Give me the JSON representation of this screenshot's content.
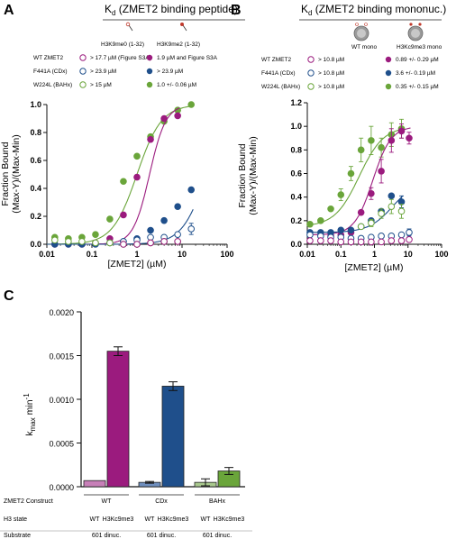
{
  "panel_a": {
    "letter": "A",
    "title_k": "K",
    "title_sub": "d",
    "title_rest": " (ZMET2 binding peptide)",
    "col_headers": [
      "H3K9me0 (1-32)",
      "H3K9me2 (1-32)"
    ],
    "legend_rows": [
      {
        "label": "WT ZMET2",
        "open": "> 17.7 µM (Figure S3A)",
        "filled": "1.9 µM and Figure S3A"
      },
      {
        "label": "F441A (CDx)",
        "open": "> 23.9 µM",
        "filled": "> 23.9 µM"
      },
      {
        "label": "W224L (BAHx)",
        "open": "> 15 µM",
        "filled": "1.0 +/- 0.06 µM"
      }
    ]
  },
  "panel_b": {
    "letter": "B",
    "title_k": "K",
    "title_sub": "d",
    "title_rest": " (ZMET2 binding mononuc.)",
    "col_headers": [
      "WT mono",
      "H3Kc9me3 mono"
    ],
    "legend_rows": [
      {
        "label": "WT ZMET2",
        "open": "> 10.8 µM",
        "filled": "0.89 +/- 0.29 µM"
      },
      {
        "label": "F441A (CDx)",
        "open": "> 10.8 µM",
        "filled": "3.6 +/- 0.19 µM"
      },
      {
        "label": "W224L (BAHx)",
        "open": "> 10.8 µM",
        "filled": "0.35 +/- 0.15 µM"
      }
    ]
  },
  "panel_c": {
    "letter": "C",
    "row_labels": [
      "ZMET2 Construct",
      "H3 state",
      "Substrate"
    ],
    "constructs": [
      "WT",
      "CDx",
      "BAHx"
    ],
    "h3_states": [
      "WT",
      "H3Kc9me3",
      "WT",
      "H3Kc9me3",
      "WT",
      "H3Kc9me3"
    ],
    "substrates": [
      "601 dinuc.",
      "601 dinuc.",
      "601 dinuc."
    ]
  },
  "colors": {
    "wt": "#9b1b7e",
    "cdx": "#1f4f8b",
    "bahx": "#6aa53a",
    "wt_light": "#c77fb8",
    "cdx_light": "#6f8fbf",
    "bahx_light": "#a9c98e"
  },
  "chart_data": [
    {
      "type": "scatter",
      "xlabel": "[ZMET2] (µM)",
      "ylabel": "Fraction Bound (Max-Y)/(Max-Min)",
      "x_scale": "log",
      "xlim": [
        0.01,
        100
      ],
      "ylim": [
        0,
        1.0
      ],
      "x_tick_labels": [
        "0.01",
        "0.1",
        "1",
        "10",
        "100"
      ],
      "y_tick_labels": [
        "0.0",
        "0.2",
        "0.4",
        "0.6",
        "0.8",
        "1.0"
      ],
      "series": [
        {
          "color": "#6aa53a",
          "filled": true,
          "fit": true,
          "kd": 1.0,
          "n": 1.6,
          "x": [
            0.015,
            0.03,
            0.06,
            0.12,
            0.25,
            0.5,
            1,
            2,
            4,
            8,
            16
          ],
          "y": [
            0.05,
            0.04,
            0.05,
            0.07,
            0.18,
            0.45,
            0.63,
            0.77,
            0.88,
            0.96,
            1.0
          ],
          "err": [
            0,
            0,
            0,
            0,
            0,
            0,
            0,
            0,
            0,
            0,
            0
          ]
        },
        {
          "color": "#9b1b7e",
          "filled": true,
          "fit": true,
          "kd": 1.9,
          "n": 2.4,
          "x": [
            0.015,
            0.03,
            0.06,
            0.12,
            0.25,
            0.5,
            1,
            2,
            4,
            8
          ],
          "y": [
            0.0,
            0.0,
            0.0,
            0.01,
            0.04,
            0.21,
            0.48,
            0.75,
            0.9,
            0.92
          ],
          "err": [
            0,
            0,
            0,
            0,
            0,
            0,
            0,
            0,
            0,
            0
          ]
        },
        {
          "color": "#1f4f8b",
          "filled": true,
          "fit": true,
          "kd": 35,
          "n": 1.6,
          "x": [
            0.015,
            0.03,
            0.06,
            0.12,
            0.25,
            0.5,
            1,
            2,
            4,
            8,
            16
          ],
          "y": [
            0.0,
            0.0,
            0.0,
            0.0,
            0.01,
            0.02,
            0.04,
            0.1,
            0.17,
            0.27,
            0.39
          ],
          "err": [
            0,
            0,
            0,
            0,
            0,
            0,
            0,
            0,
            0,
            0,
            0
          ]
        },
        {
          "color": "#1f4f8b",
          "filled": false,
          "fit": false,
          "x": [
            0.5,
            1,
            2,
            4,
            8,
            16
          ],
          "y": [
            0.02,
            0.03,
            0.05,
            0.05,
            0.07,
            0.11
          ],
          "err": [
            0,
            0,
            0,
            0,
            0,
            0.04
          ]
        },
        {
          "color": "#6aa53a",
          "filled": false,
          "fit": false,
          "x": [
            0.015,
            0.03,
            0.06,
            0.12,
            0.25,
            0.5,
            1,
            2,
            4,
            8
          ],
          "y": [
            0.03,
            0.02,
            0.02,
            0.01,
            0.01,
            0.0,
            0.0,
            0.01,
            0.02,
            0.02
          ],
          "err": [
            0,
            0,
            0,
            0,
            0,
            0,
            0,
            0,
            0,
            0
          ]
        },
        {
          "color": "#9b1b7e",
          "filled": false,
          "fit": false,
          "x": [
            0.5,
            1,
            2,
            4,
            8
          ],
          "y": [
            0.0,
            0.0,
            0.01,
            0.02,
            0.02
          ],
          "err": [
            0,
            0,
            0,
            0,
            0
          ]
        }
      ]
    },
    {
      "type": "scatter",
      "xlabel": "[ZMET2] (µM)",
      "ylabel": "Fraction Bound (Max-Y)/(Max-Min)",
      "x_scale": "log",
      "xlim": [
        0.01,
        100
      ],
      "ylim": [
        0,
        1.2
      ],
      "x_tick_labels": [
        "0.01",
        "0.1",
        "1",
        "10",
        "100"
      ],
      "y_tick_labels": [
        "0.0",
        "0.2",
        "0.4",
        "0.6",
        "0.8",
        "1.0",
        "1.2"
      ],
      "series": [
        {
          "color": "#6aa53a",
          "filled": true,
          "fit": true,
          "kd": 0.35,
          "n": 1.2,
          "base": 0.15,
          "x": [
            0.012,
            0.025,
            0.05,
            0.1,
            0.2,
            0.4,
            0.8,
            1.6,
            3.2,
            6.4
          ],
          "y": [
            0.17,
            0.2,
            0.3,
            0.42,
            0.6,
            0.8,
            0.88,
            0.82,
            0.93,
            0.98
          ],
          "err": [
            0,
            0,
            0,
            0.05,
            0.06,
            0.1,
            0.12,
            0.08,
            0.1,
            0.08
          ]
        },
        {
          "color": "#9b1b7e",
          "filled": true,
          "fit": true,
          "kd": 0.89,
          "n": 1.6,
          "base": 0.08,
          "x": [
            0.05,
            0.1,
            0.2,
            0.4,
            0.8,
            1.6,
            3.2,
            6.4,
            10.8
          ],
          "y": [
            0.07,
            0.08,
            0.1,
            0.27,
            0.43,
            0.62,
            0.88,
            0.96,
            0.9
          ],
          "err": [
            0,
            0,
            0,
            0,
            0.05,
            0.1,
            0.1,
            0.06,
            0.05
          ]
        },
        {
          "color": "#1f4f8b",
          "filled": true,
          "fit": true,
          "kd": 3.6,
          "n": 1.2,
          "base": 0.1,
          "top": 0.55,
          "x": [
            0.012,
            0.025,
            0.05,
            0.1,
            0.2,
            0.4,
            0.8,
            1.6,
            3.2,
            6.4
          ],
          "y": [
            0.1,
            0.1,
            0.1,
            0.12,
            0.12,
            0.15,
            0.2,
            0.28,
            0.41,
            0.36
          ],
          "err": [
            0,
            0,
            0,
            0,
            0,
            0,
            0,
            0,
            0,
            0.05
          ]
        },
        {
          "color": "#6aa53a",
          "filled": false,
          "fit": false,
          "x": [
            0.4,
            0.8,
            1.6,
            3.2,
            6.4
          ],
          "y": [
            0.15,
            0.18,
            0.26,
            0.32,
            0.28
          ],
          "err": [
            0,
            0.03,
            0.04,
            0.06,
            0.06
          ]
        },
        {
          "color": "#1f4f8b",
          "filled": false,
          "fit": false,
          "x": [
            0.012,
            0.025,
            0.05,
            0.1,
            0.2,
            0.4,
            0.8,
            1.6,
            3.2,
            6.4,
            10.8
          ],
          "y": [
            0.08,
            0.07,
            0.06,
            0.06,
            0.05,
            0.05,
            0.06,
            0.07,
            0.07,
            0.08,
            0.1
          ],
          "err": [
            0,
            0,
            0,
            0,
            0,
            0,
            0,
            0,
            0,
            0,
            0.03
          ]
        },
        {
          "color": "#9b1b7e",
          "filled": false,
          "fit": false,
          "x": [
            0.012,
            0.025,
            0.05,
            0.1,
            0.2,
            0.4,
            0.8,
            1.6,
            3.2,
            6.4,
            10.8
          ],
          "y": [
            0.03,
            0.03,
            0.03,
            0.02,
            0.02,
            0.02,
            0.02,
            0.02,
            0.03,
            0.03,
            0.04
          ],
          "err": [
            0,
            0,
            0,
            0,
            0,
            0,
            0,
            0,
            0,
            0,
            0
          ]
        }
      ]
    },
    {
      "type": "bar",
      "ylabel": "k_max min^-1",
      "ylim": [
        0,
        0.002
      ],
      "y_tick_labels": [
        "0.0000",
        "0.0005",
        "0.0010",
        "0.0015",
        "0.0020"
      ],
      "categories": [
        "WT",
        "H3Kc9me3",
        "WT",
        "H3Kc9me3",
        "WT",
        "H3Kc9me3"
      ],
      "values": [
        7e-05,
        0.00155,
        5e-05,
        0.00115,
        5e-05,
        0.00018
      ],
      "errors": [
        0,
        5e-05,
        1e-05,
        5e-05,
        4e-05,
        4e-05
      ],
      "colors": [
        "#c77fb8",
        "#9b1b7e",
        "#6f8fbf",
        "#1f4f8b",
        "#a9c98e",
        "#6aa53a"
      ]
    }
  ]
}
